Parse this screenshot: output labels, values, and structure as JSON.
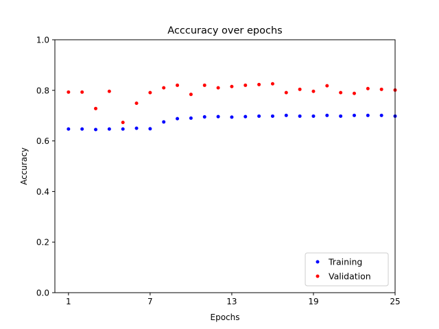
{
  "chart_data": {
    "type": "scatter",
    "title": "Acccuracy over epochs",
    "xlabel": "Epochs",
    "ylabel": "Accuracy",
    "xlim": [
      0,
      25
    ],
    "ylim": [
      0.0,
      1.0
    ],
    "xticks": [
      1,
      7,
      13,
      19,
      25
    ],
    "yticks": [
      0.0,
      0.2,
      0.4,
      0.6,
      0.8,
      1.0
    ],
    "ytick_labels": [
      "0.0",
      "0.2",
      "0.4",
      "0.6",
      "0.8",
      "1.0"
    ],
    "grid": false,
    "legend_position": "lower-right",
    "x": [
      1,
      2,
      3,
      4,
      5,
      6,
      7,
      8,
      9,
      10,
      11,
      12,
      13,
      14,
      15,
      16,
      17,
      18,
      19,
      20,
      21,
      22,
      23,
      24,
      25
    ],
    "series": [
      {
        "name": "Training",
        "color": "#0000ff",
        "values": [
          0.647,
          0.647,
          0.645,
          0.647,
          0.647,
          0.65,
          0.648,
          0.675,
          0.688,
          0.69,
          0.695,
          0.696,
          0.694,
          0.696,
          0.698,
          0.698,
          0.701,
          0.698,
          0.698,
          0.701,
          0.698,
          0.701,
          0.701,
          0.701,
          0.698
        ]
      },
      {
        "name": "Validation",
        "color": "#ff0000",
        "values": [
          0.793,
          0.793,
          0.728,
          0.796,
          0.673,
          0.749,
          0.791,
          0.81,
          0.82,
          0.784,
          0.82,
          0.81,
          0.815,
          0.82,
          0.823,
          0.826,
          0.791,
          0.804,
          0.796,
          0.818,
          0.791,
          0.788,
          0.807,
          0.804,
          0.801
        ]
      }
    ]
  }
}
